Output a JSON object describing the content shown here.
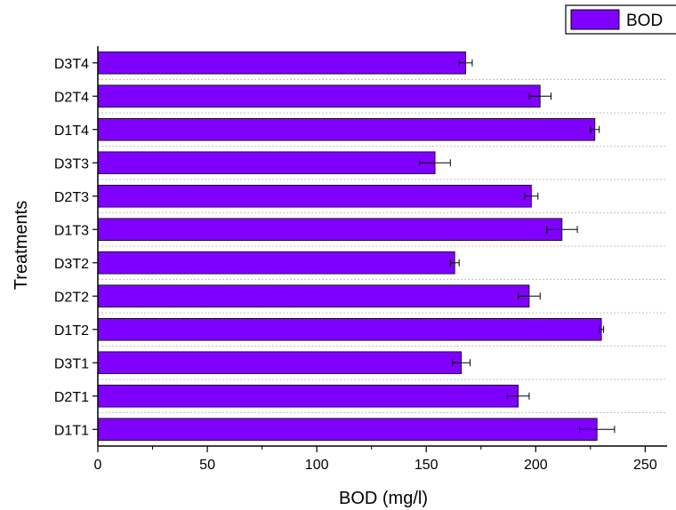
{
  "chart_data": {
    "type": "bar",
    "orientation": "horizontal",
    "title": "",
    "xlabel": "BOD (mg/l)",
    "ylabel": "Treatments",
    "xlim": [
      0,
      260
    ],
    "xticks": [
      0,
      50,
      100,
      150,
      200,
      250
    ],
    "grid": "horizontal dotted",
    "legend": {
      "placement": "top-right",
      "entries": [
        "BOD"
      ]
    },
    "bar_color": "#8000ff",
    "categories": [
      "D1T1",
      "D2T1",
      "D3T1",
      "D1T2",
      "D2T2",
      "D3T2",
      "D1T3",
      "D2T3",
      "D3T3",
      "D1T4",
      "D2T4",
      "D3T4"
    ],
    "series": [
      {
        "name": "BOD",
        "values": [
          228,
          192,
          166,
          230,
          197,
          163,
          212,
          198,
          154,
          227,
          202,
          168
        ],
        "errors": [
          8,
          5,
          4,
          1,
          5,
          2,
          7,
          3,
          7,
          2,
          5,
          3
        ]
      }
    ]
  }
}
